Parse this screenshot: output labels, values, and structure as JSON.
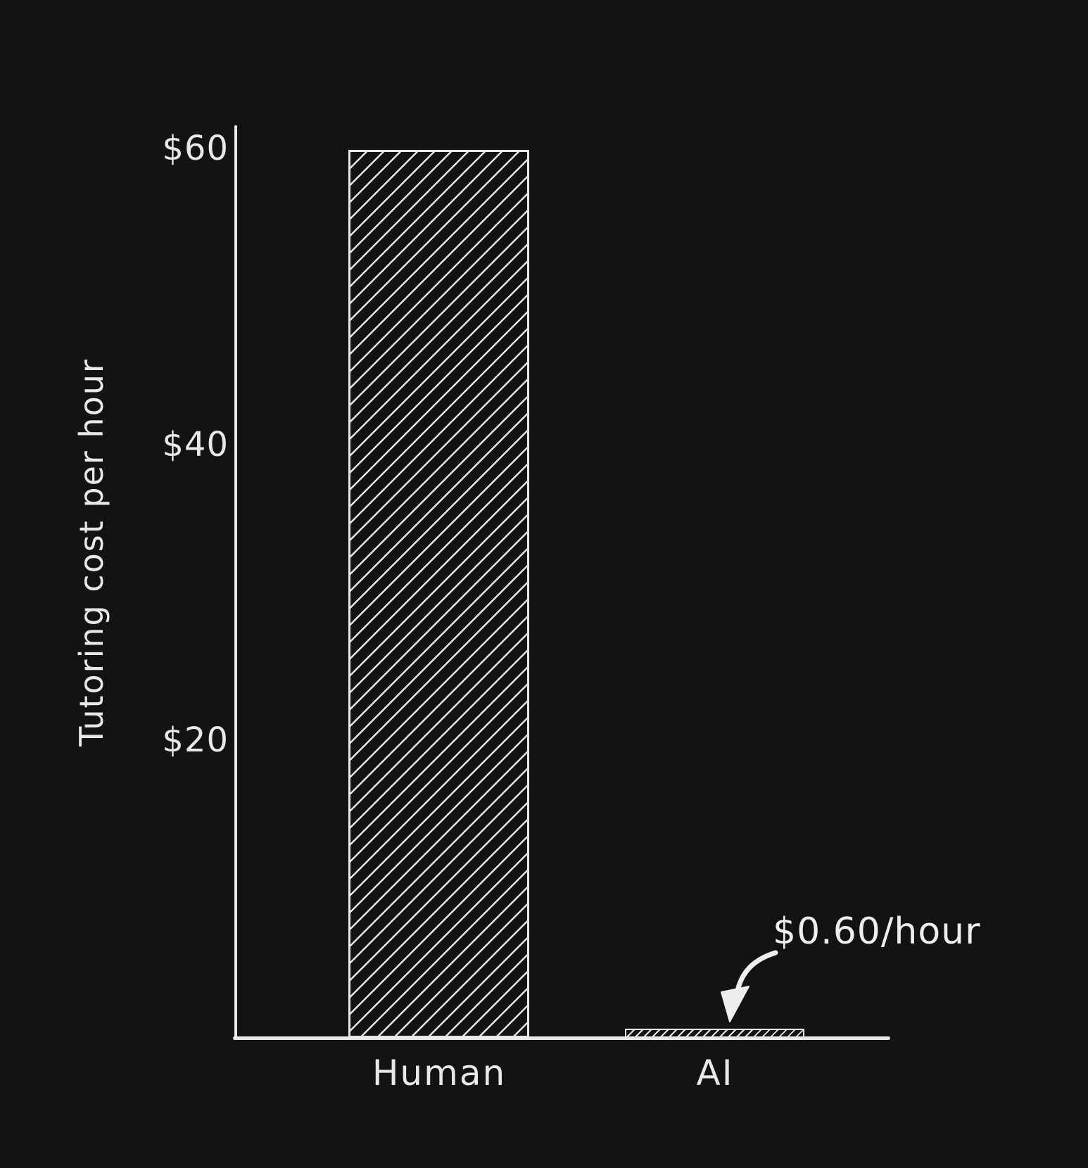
{
  "colors": {
    "background": "#131313",
    "ink": "#e8e8e8"
  },
  "chart_data": {
    "type": "bar",
    "title": "",
    "xlabel": "",
    "ylabel": "Tutoring cost per hour",
    "categories": [
      "Human",
      "AI"
    ],
    "values": [
      60,
      0.6
    ],
    "ylim": [
      0,
      60
    ],
    "grid": false,
    "legend": false,
    "yticks": [
      {
        "value": 20,
        "label": "$20"
      },
      {
        "value": 40,
        "label": "$40"
      },
      {
        "value": 60,
        "label": "$60"
      }
    ],
    "annotations": [
      {
        "text": "$0.60/hour",
        "target_category": "AI",
        "arrow": "curved, pointing down-left to AI bar"
      }
    ],
    "style": "hand-drawn, white diagonal-hatched bars on dark background"
  }
}
